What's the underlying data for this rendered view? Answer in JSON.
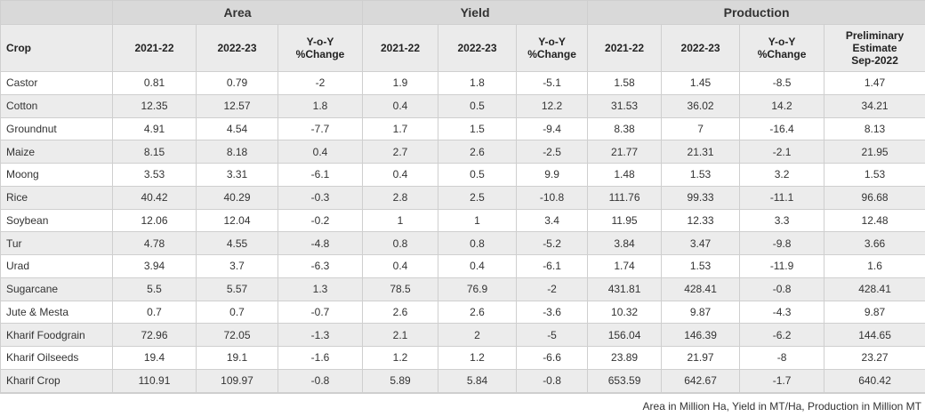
{
  "groups": {
    "area": "Area",
    "yield": "Yield",
    "production": "Production"
  },
  "headers": {
    "crop": "Crop",
    "area_2021": "2021-22",
    "area_2022": "2022-23",
    "area_yoy": "Y-o-Y\n%Change",
    "yield_2021": "2021-22",
    "yield_2022": "2022-23",
    "yield_yoy": "Y-o-Y\n%Change",
    "prod_2021": "2021-22",
    "prod_2022": "2022-23",
    "prod_yoy": "Y-o-Y\n%Change",
    "prelim": "Preliminary\nEstimate\nSep-2022"
  },
  "rows": [
    [
      "Castor",
      "0.81",
      "0.79",
      "-2",
      "1.9",
      "1.8",
      "-5.1",
      "1.58",
      "1.45",
      "-8.5",
      "1.47"
    ],
    [
      "Cotton",
      "12.35",
      "12.57",
      "1.8",
      "0.4",
      "0.5",
      "12.2",
      "31.53",
      "36.02",
      "14.2",
      "34.21"
    ],
    [
      "Groundnut",
      "4.91",
      "4.54",
      "-7.7",
      "1.7",
      "1.5",
      "-9.4",
      "8.38",
      "7",
      "-16.4",
      "8.13"
    ],
    [
      "Maize",
      "8.15",
      "8.18",
      "0.4",
      "2.7",
      "2.6",
      "-2.5",
      "21.77",
      "21.31",
      "-2.1",
      "21.95"
    ],
    [
      "Moong",
      "3.53",
      "3.31",
      "-6.1",
      "0.4",
      "0.5",
      "9.9",
      "1.48",
      "1.53",
      "3.2",
      "1.53"
    ],
    [
      "Rice",
      "40.42",
      "40.29",
      "-0.3",
      "2.8",
      "2.5",
      "-10.8",
      "111.76",
      "99.33",
      "-11.1",
      "96.68"
    ],
    [
      "Soybean",
      "12.06",
      "12.04",
      "-0.2",
      "1",
      "1",
      "3.4",
      "11.95",
      "12.33",
      "3.3",
      "12.48"
    ],
    [
      "Tur",
      "4.78",
      "4.55",
      "-4.8",
      "0.8",
      "0.8",
      "-5.2",
      "3.84",
      "3.47",
      "-9.8",
      "3.66"
    ],
    [
      "Urad",
      "3.94",
      "3.7",
      "-6.3",
      "0.4",
      "0.4",
      "-6.1",
      "1.74",
      "1.53",
      "-11.9",
      "1.6"
    ],
    [
      "Sugarcane",
      "5.5",
      "5.57",
      "1.3",
      "78.5",
      "76.9",
      "-2",
      "431.81",
      "428.41",
      "-0.8",
      "428.41"
    ],
    [
      "Jute & Mesta",
      "0.7",
      "0.7",
      "-0.7",
      "2.6",
      "2.6",
      "-3.6",
      "10.32",
      "9.87",
      "-4.3",
      "9.87"
    ],
    [
      "Kharif Foodgrain",
      "72.96",
      "72.05",
      "-1.3",
      "2.1",
      "2",
      "-5",
      "156.04",
      "146.39",
      "-6.2",
      "144.65"
    ],
    [
      "Kharif Oilseeds",
      "19.4",
      "19.1",
      "-1.6",
      "1.2",
      "1.2",
      "-6.6",
      "23.89",
      "21.97",
      "-8",
      "23.27"
    ],
    [
      "Kharif Crop",
      "110.91",
      "109.97",
      "-0.8",
      "5.89",
      "5.84",
      "-0.8",
      "653.59",
      "642.67",
      "-1.7",
      "640.42"
    ]
  ],
  "footnote": "Area in Million Ha, Yield in MT/Ha, Production in Million MT"
}
